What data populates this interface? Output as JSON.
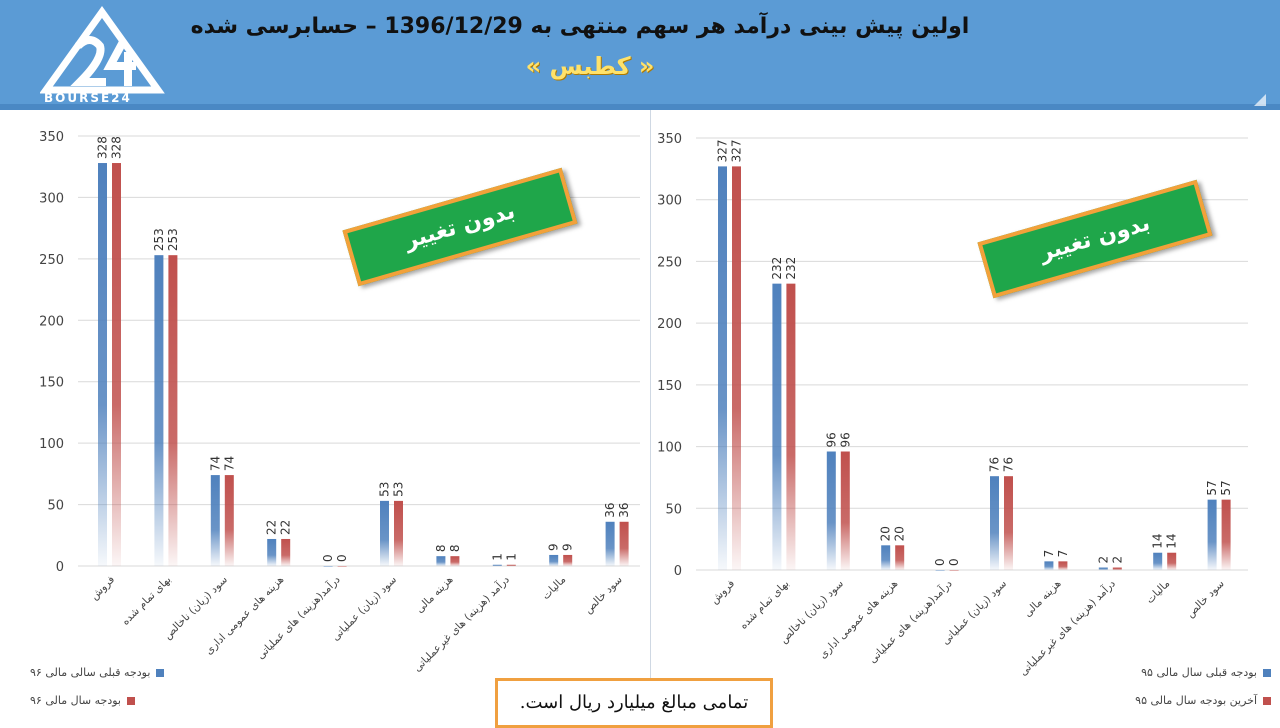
{
  "header": {
    "title": "اولین پیش بینی درآمد هر سهم منتهی به 1396/12/29 – حسابرسی شده",
    "subtitle": "« کطبس »",
    "logo_text": "BOURSE24"
  },
  "colors": {
    "header_bg": "#5b9bd5",
    "series_blue": "#4f81bd",
    "series_red": "#c0504d",
    "badge_bg": "#1fa64a",
    "badge_border": "#f2a13a",
    "note_border": "#f0a040"
  },
  "note": "تمامی مبالغ میلیارد ریال است.",
  "charts": [
    {
      "badge": "بدون تغییر",
      "legend": [
        "بودجه قبلی سالی مالی ۹۶",
        "بودجه سال مالی ۹۶"
      ]
    },
    {
      "badge": "بدون تغییر",
      "legend": [
        "بودجه قبلی سال مالی ۹۵",
        "آخرین بودجه سال مالی ۹۵"
      ]
    }
  ],
  "chart_data": [
    {
      "type": "bar",
      "categories": [
        "فروش",
        "بهای تمام شده",
        "سود (زیان) ناخالص",
        "هزینه های عمومی اداری",
        "درآمد(هزینه) های عملیاتی",
        "سود (زیان) عملیاتی",
        "هزینه مالی",
        "درآمد (هزینه) های غیرعملیاتی",
        "مالیات",
        "سود خالص"
      ],
      "series": [
        {
          "name": "بودجه قبلی سالی مالی ۹۶",
          "values": [
            328,
            253,
            74,
            22,
            0,
            53,
            8,
            1,
            9,
            36
          ]
        },
        {
          "name": "بودجه سال مالی ۹۶",
          "values": [
            328,
            253,
            74,
            22,
            0,
            53,
            8,
            1,
            9,
            36
          ]
        }
      ],
      "yticks": [
        0,
        50,
        100,
        150,
        200,
        250,
        300,
        350
      ],
      "ylim": [
        0,
        350
      ],
      "grid": true,
      "legend_position": "bottom-left"
    },
    {
      "type": "bar",
      "categories": [
        "فروش",
        "بهای تمام شده",
        "سود (زیان) ناخالص",
        "هزینه های عمومی اداری",
        "درآمد(هزینه) های عملیاتی",
        "سود (زیان) عملیاتی",
        "هزینه مالی",
        "درآمد (هزینه) های غیرعملیاتی",
        "مالیات",
        "سود خالص"
      ],
      "series": [
        {
          "name": "بودجه قبلی سال مالی ۹۵",
          "values": [
            327,
            232,
            96,
            20,
            0,
            76,
            7,
            2,
            14,
            57
          ]
        },
        {
          "name": "آخرین بودجه سال مالی ۹۵",
          "values": [
            327,
            232,
            96,
            20,
            0,
            76,
            7,
            2,
            14,
            57
          ]
        }
      ],
      "yticks": [
        0,
        50,
        100,
        150,
        200,
        250,
        300,
        350
      ],
      "ylim": [
        0,
        350
      ],
      "grid": true,
      "legend_position": "bottom-right"
    }
  ]
}
